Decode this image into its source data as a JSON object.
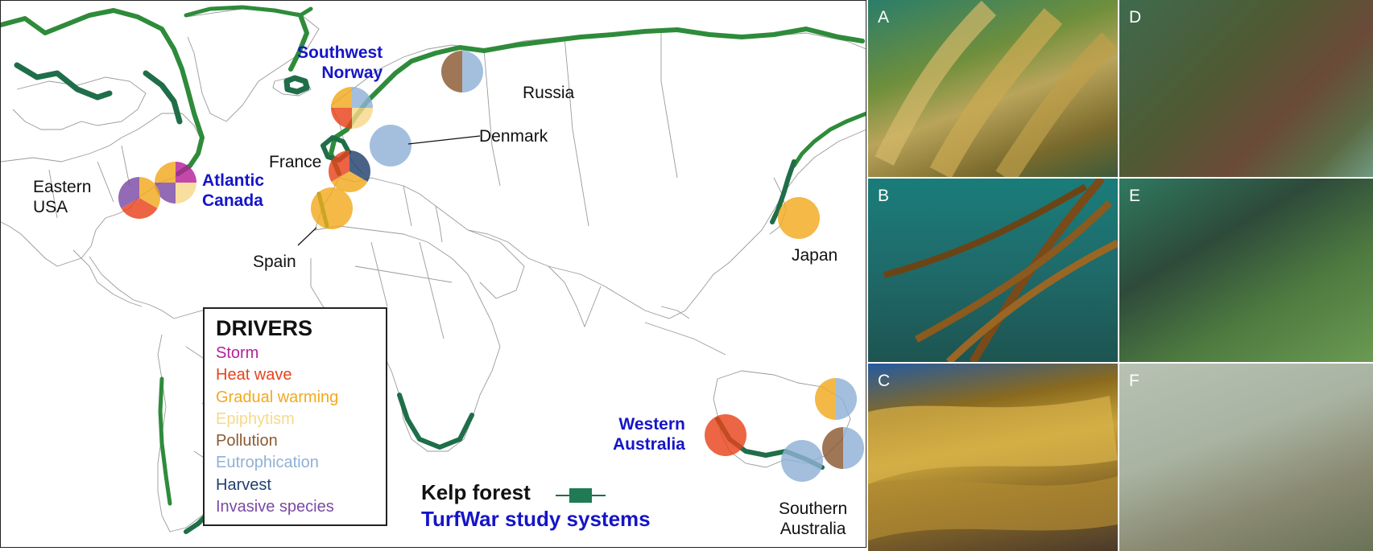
{
  "map": {
    "labels": {
      "southwest_norway": "Southwest\nNorway",
      "russia": "Russia",
      "denmark": "Denmark",
      "france": "France",
      "eastern_usa": "Eastern\nUSA",
      "atlantic_canada": "Atlantic\nCanada",
      "spain": "Spain",
      "japan": "Japan",
      "western_australia": "Western\nAustralia",
      "southern_australia": "Southern\nAustralia"
    },
    "colors": {
      "kelp_forest": "#2e8b3a",
      "kelp_forest_dark": "#1f6e49",
      "study_system_text": "#1515c8"
    },
    "driver_pies": [
      {
        "site": "Southwest Norway",
        "drivers": [
          "Eutrophication",
          "Epiphytism",
          "Heat wave",
          "Gradual warming"
        ]
      },
      {
        "site": "Russia",
        "drivers": [
          "Eutrophication",
          "Pollution"
        ]
      },
      {
        "site": "Denmark",
        "drivers": [
          "Eutrophication"
        ]
      },
      {
        "site": "France",
        "drivers": [
          "Harvest",
          "Gradual warming",
          "Heat wave"
        ]
      },
      {
        "site": "Spain",
        "drivers": [
          "Gradual warming"
        ]
      },
      {
        "site": "Atlantic Canada",
        "drivers": [
          "Storm",
          "Epiphytism",
          "Invasive species",
          "Gradual warming"
        ]
      },
      {
        "site": "Eastern USA",
        "drivers": [
          "Gradual warming",
          "Heat wave",
          "Invasive species"
        ]
      },
      {
        "site": "Japan",
        "drivers": [
          "Gradual warming"
        ]
      },
      {
        "site": "Western Australia",
        "drivers": [
          "Heat wave"
        ]
      },
      {
        "site": "Southern Australia",
        "drivers": [
          "Eutrophication",
          "Gradual warming"
        ]
      },
      {
        "site": "Southern Australia",
        "drivers": [
          "Eutrophication",
          "Pollution"
        ]
      },
      {
        "site": "Southern Australia",
        "drivers": [
          "Eutrophication"
        ]
      }
    ]
  },
  "legend": {
    "title": "DRIVERS",
    "items": [
      {
        "label": "Storm",
        "color": "#b5219a"
      },
      {
        "label": "Heat wave",
        "color": "#e8431c"
      },
      {
        "label": "Gradual warming",
        "color": "#f2a91e"
      },
      {
        "label": "Epiphytism",
        "color": "#f7d98a"
      },
      {
        "label": "Pollution",
        "color": "#8a5a32"
      },
      {
        "label": "Eutrophication",
        "color": "#8fb1d6"
      },
      {
        "label": "Harvest",
        "color": "#22406e"
      },
      {
        "label": "Invasive species",
        "color": "#7b4aa6"
      }
    ]
  },
  "key": {
    "kelp_forest": "Kelp forest",
    "study_systems": "TurfWar study systems"
  },
  "photos": [
    "A",
    "B",
    "C",
    "D",
    "E",
    "F"
  ]
}
